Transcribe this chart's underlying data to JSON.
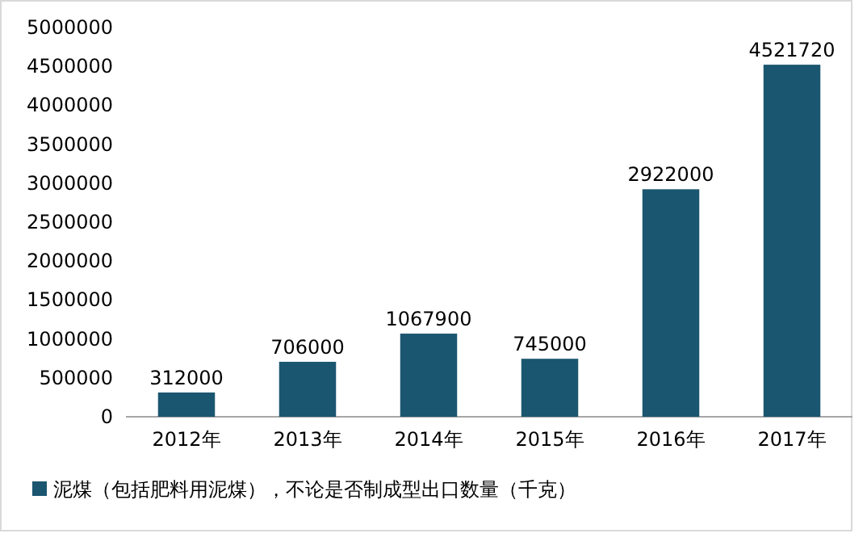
{
  "chart_data": {
    "type": "bar",
    "categories": [
      "2012年",
      "2013年",
      "2014年",
      "2015年",
      "2016年",
      "2017年"
    ],
    "series": [
      {
        "name": "泥煤（包括肥料用泥煤），不论是否制成型出口数量（千克）",
        "color": "#1b5670",
        "values": [
          312000,
          706000,
          1067900,
          745000,
          2922000,
          4521720
        ]
      }
    ],
    "ylim": [
      0,
      5000000
    ],
    "yticks": [
      0,
      500000,
      1000000,
      1500000,
      2000000,
      2500000,
      3000000,
      3500000,
      4000000,
      4500000,
      5000000
    ],
    "data_labels": true,
    "legend": "bottom",
    "grid": false
  }
}
